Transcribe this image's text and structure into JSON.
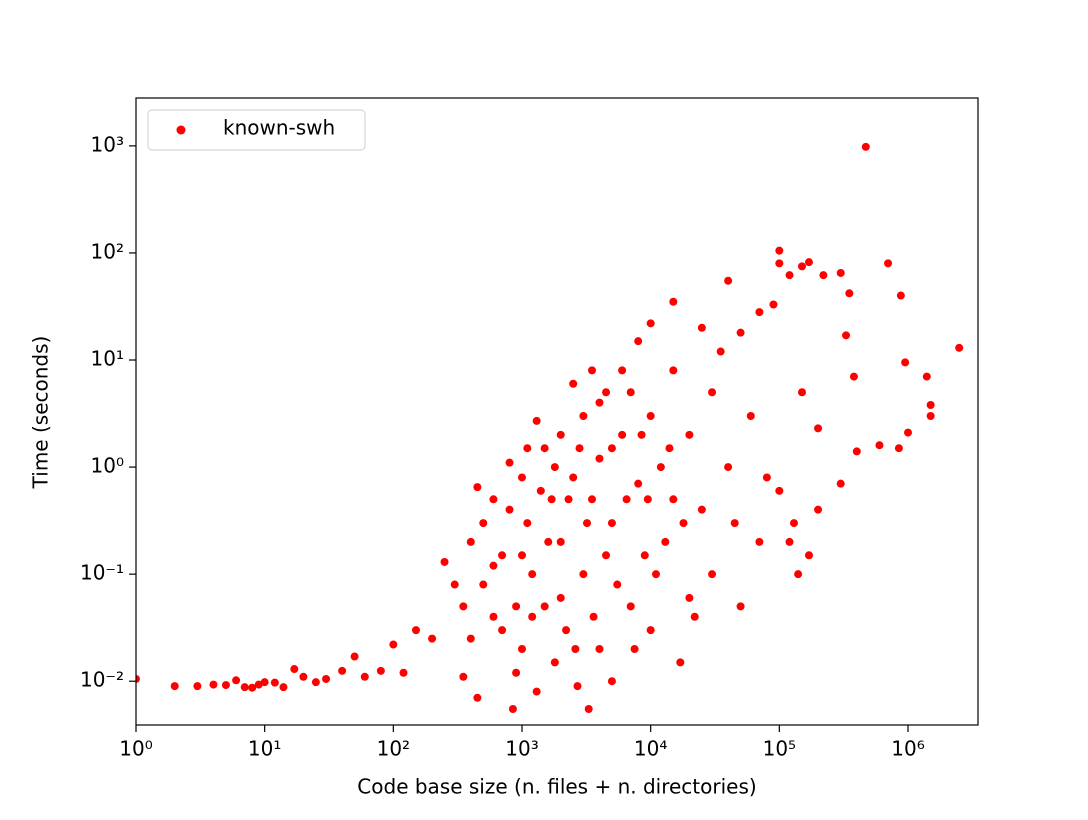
{
  "chart_data": {
    "type": "scatter",
    "xlabel": "Code base size (n. files + n. directories)",
    "ylabel": "Time (seconds)",
    "xscale": "log",
    "yscale": "log",
    "xlim": [
      1,
      3500000
    ],
    "ylim": [
      0.0039,
      2800
    ],
    "xticks": [
      {
        "value": 1,
        "label": "10⁰"
      },
      {
        "value": 10,
        "label": "10¹"
      },
      {
        "value": 100,
        "label": "10²"
      },
      {
        "value": 1000,
        "label": "10³"
      },
      {
        "value": 10000,
        "label": "10⁴"
      },
      {
        "value": 100000,
        "label": "10⁵"
      },
      {
        "value": 1000000,
        "label": "10⁶"
      }
    ],
    "yticks": [
      {
        "value": 0.01,
        "label": "10⁻²"
      },
      {
        "value": 0.1,
        "label": "10⁻¹"
      },
      {
        "value": 1,
        "label": "10⁰"
      },
      {
        "value": 10,
        "label": "10¹"
      },
      {
        "value": 100,
        "label": "10²"
      },
      {
        "value": 1000,
        "label": "10³"
      }
    ],
    "legend": "upper left",
    "series": [
      {
        "name": "known-swh",
        "color": "#ff0000",
        "x": [
          1,
          2,
          3,
          4,
          5,
          6,
          7,
          8,
          9,
          10,
          12,
          14,
          17,
          20,
          25,
          30,
          40,
          50,
          60,
          80,
          100,
          120,
          150,
          200,
          250,
          300,
          350,
          400,
          450,
          450,
          500,
          600,
          600,
          700,
          800,
          850,
          900,
          1000,
          1000,
          1100,
          1200,
          1300,
          1300,
          1500,
          1500,
          1700,
          1800,
          2000,
          2000,
          2200,
          2500,
          2500,
          2700,
          3000,
          3000,
          3300,
          3500,
          3500,
          4000,
          4000,
          4500,
          5000,
          5000,
          6000,
          6000,
          7000,
          8000,
          8000,
          9000,
          10000,
          10000,
          10000,
          12000,
          13000,
          15000,
          15000,
          15000,
          17000,
          20000,
          20000,
          25000,
          25000,
          30000,
          30000,
          35000,
          40000,
          40000,
          45000,
          50000,
          50000,
          60000,
          70000,
          70000,
          80000,
          90000,
          100000,
          100000,
          100000,
          120000,
          120000,
          150000,
          150000,
          170000,
          170000,
          200000,
          200000,
          220000,
          300000,
          300000,
          330000,
          350000,
          380000,
          400000,
          470000,
          600000,
          700000,
          850000,
          880000,
          950000,
          1000000,
          1400000,
          1500000,
          1500000,
          2500000,
          700,
          800,
          900,
          1000,
          1100,
          1200,
          1400,
          1600,
          1800,
          2000,
          2300,
          2600,
          2800,
          3200,
          3600,
          4000,
          4500,
          5000,
          5500,
          6500,
          7000,
          7500,
          8500,
          9500,
          11000,
          14000,
          18000,
          22000,
          500,
          400,
          350,
          600,
          130000,
          140000
        ],
        "values": [
          0.0105,
          0.009,
          0.009,
          0.0093,
          0.0092,
          0.0102,
          0.0088,
          0.0087,
          0.0093,
          0.0098,
          0.0097,
          0.0088,
          0.013,
          0.011,
          0.0098,
          0.0105,
          0.0125,
          0.017,
          0.011,
          0.0125,
          0.022,
          0.012,
          0.03,
          0.025,
          0.13,
          0.08,
          0.011,
          0.2,
          0.007,
          0.65,
          0.3,
          0.04,
          0.5,
          0.15,
          1.1,
          0.0055,
          0.05,
          0.8,
          0.02,
          0.3,
          0.1,
          2.7,
          0.008,
          1.5,
          0.05,
          0.5,
          0.015,
          2,
          0.2,
          0.03,
          6,
          0.8,
          0.009,
          3,
          0.1,
          0.0055,
          8,
          0.5,
          1.2,
          0.02,
          5,
          0.3,
          0.01,
          8,
          2,
          0.05,
          15,
          0.7,
          0.15,
          22,
          3,
          0.03,
          1,
          0.2,
          35,
          8,
          0.5,
          0.015,
          2,
          0.06,
          20,
          0.4,
          5,
          0.1,
          12,
          55,
          1,
          0.3,
          18,
          0.05,
          3,
          28,
          0.2,
          0.8,
          33,
          105,
          80,
          0.6,
          62,
          0.2,
          75,
          5,
          82,
          0.15,
          2.3,
          0.4,
          62,
          65,
          0.7,
          17,
          42,
          7,
          1.4,
          980,
          1.6,
          80,
          1.5,
          40,
          9.5,
          2.1,
          7,
          3.8,
          3,
          13,
          0.03,
          0.4,
          0.012,
          0.15,
          1.5,
          0.04,
          0.6,
          0.2,
          1,
          0.06,
          0.5,
          0.02,
          1.5,
          0.3,
          0.04,
          4,
          0.15,
          1.5,
          0.08,
          0.5,
          5,
          0.02,
          2,
          0.5,
          0.1,
          1.5,
          0.3,
          0.04,
          0.08,
          0.025,
          0.05,
          0.12,
          0.3,
          0.1
        ]
      }
    ]
  }
}
